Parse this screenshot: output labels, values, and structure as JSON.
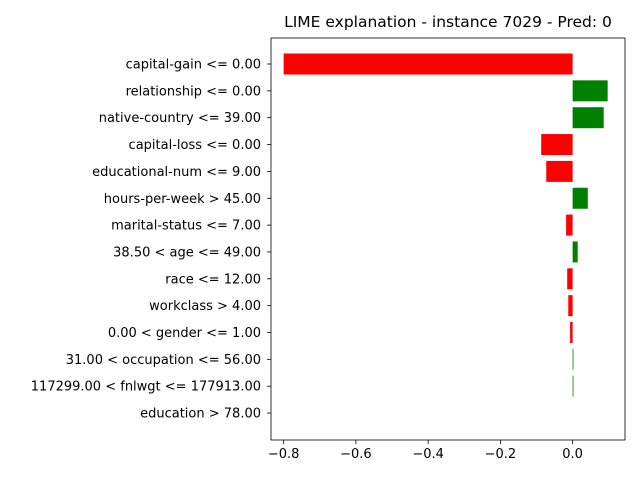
{
  "chart_data": {
    "type": "bar",
    "orientation": "horizontal",
    "title": "LIME explanation - instance 7029 - Pred: 0",
    "xlabel": "",
    "ylabel": "",
    "xlim": [
      -0.835,
      0.145
    ],
    "xticks": [
      -0.8,
      -0.6,
      -0.4,
      -0.2,
      0.0
    ],
    "xtick_labels": [
      "−0.8",
      "−0.6",
      "−0.4",
      "−0.2",
      "0.0"
    ],
    "grid": false,
    "positive_color": "#008000",
    "negative_color": "#ff0000",
    "categories": [
      "capital-gain <= 0.00",
      "relationship <= 0.00",
      "native-country <= 39.00",
      "capital-loss <= 0.00",
      "educational-num <= 9.00",
      "hours-per-week > 45.00",
      "marital-status <= 7.00",
      "38.50 < age <= 49.00",
      "race <= 12.00",
      "workclass > 4.00",
      "0.00 < gender <= 1.00",
      "31.00 < occupation <= 56.00",
      "117299.00 < fnlwgt <= 177913.00",
      "education > 78.00"
    ],
    "values": [
      -0.8,
      0.097,
      0.086,
      -0.087,
      -0.073,
      0.042,
      -0.018,
      0.014,
      -0.015,
      -0.012,
      -0.007,
      0.002,
      0.002,
      0.0
    ]
  }
}
